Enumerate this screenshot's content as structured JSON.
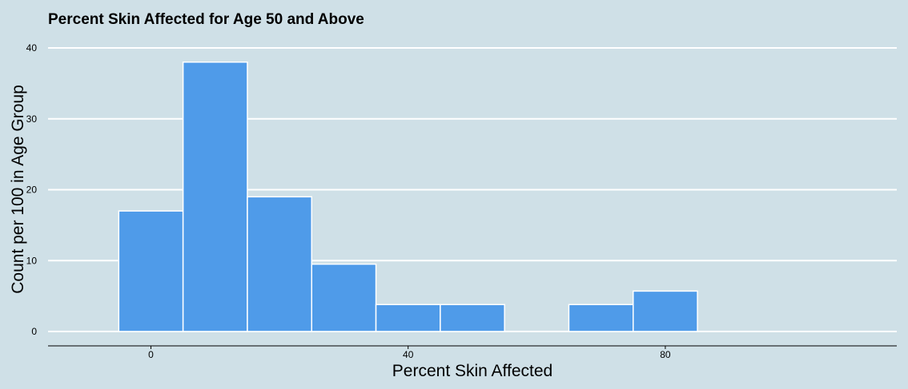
{
  "chart_data": {
    "type": "bar",
    "title": "Percent Skin Affected for Age 50 and Above",
    "xlabel": "Percent Skin Affected",
    "ylabel": "Count per 100 in Age Group",
    "xlim": [
      -16,
      116
    ],
    "ylim": [
      0,
      40
    ],
    "x_ticks": [
      "0",
      "40",
      "80"
    ],
    "y_ticks": [
      "0",
      "10",
      "20",
      "30",
      "40"
    ],
    "grid": "horizontal",
    "bin_width": 10,
    "bins": [
      {
        "x_start": -5,
        "x_end": 5,
        "value": 17
      },
      {
        "x_start": 5,
        "x_end": 15,
        "value": 38
      },
      {
        "x_start": 15,
        "x_end": 25,
        "value": 19
      },
      {
        "x_start": 25,
        "x_end": 35,
        "value": 9.5
      },
      {
        "x_start": 35,
        "x_end": 45,
        "value": 3.8
      },
      {
        "x_start": 45,
        "x_end": 55,
        "value": 3.8
      },
      {
        "x_start": 65,
        "x_end": 75,
        "value": 3.8
      },
      {
        "x_start": 75,
        "x_end": 85,
        "value": 5.7
      }
    ],
    "colors": {
      "background": "#cfe0e7",
      "bar_fill": "#4f9be9",
      "bar_stroke": "#ffffff",
      "grid": "#ffffff",
      "axis": "#000000"
    }
  }
}
